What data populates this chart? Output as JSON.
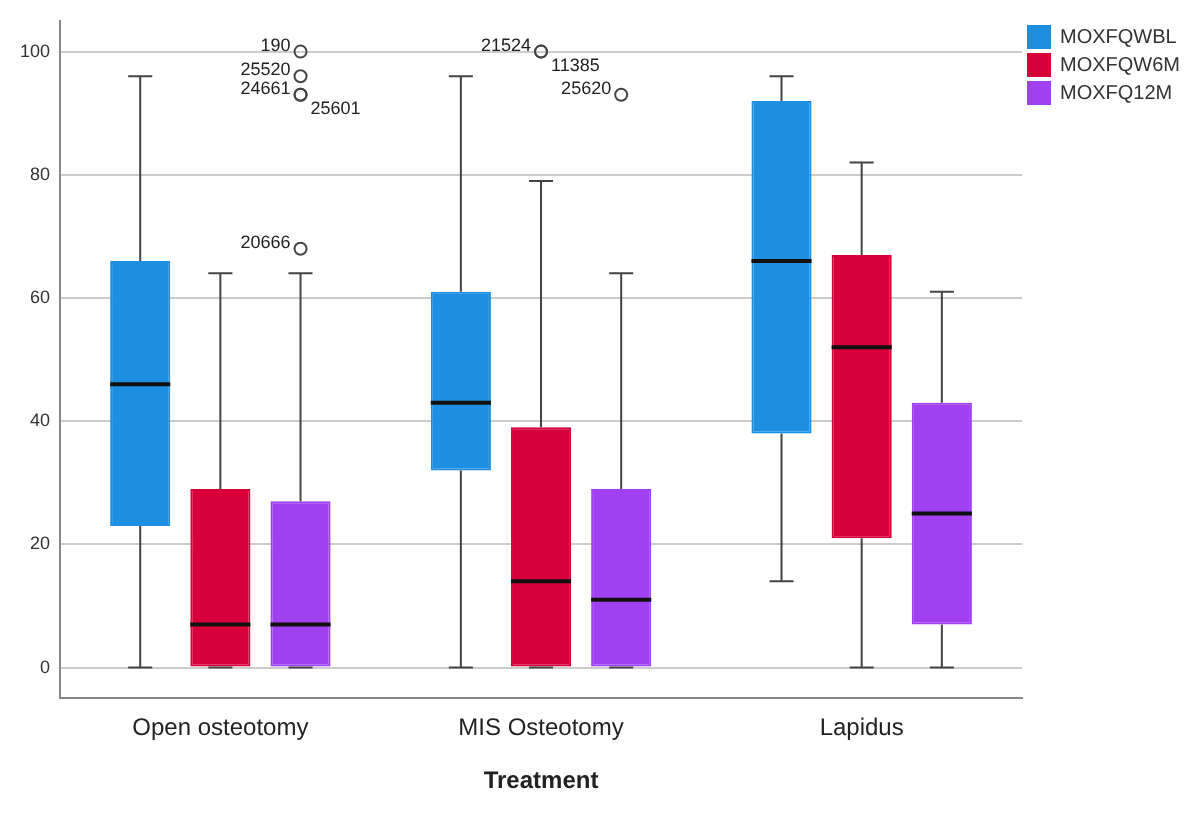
{
  "chart_data": {
    "type": "box",
    "xlabel": "Treatment",
    "categories": [
      "Open osteotomy",
      "MIS Osteotomy",
      "Lapidus"
    ],
    "series": [
      {
        "name": "MOXFQWBL",
        "color": "#1e8fe0",
        "boxes": [
          {
            "low": 0,
            "q1": 23,
            "median": 46,
            "q3": 66,
            "high": 96
          },
          {
            "low": 0,
            "q1": 32,
            "median": 43,
            "q3": 61,
            "high": 96
          },
          {
            "low": 14,
            "q1": 38,
            "median": 66,
            "q3": 92,
            "high": 96
          }
        ]
      },
      {
        "name": "MOXFQW6M",
        "color": "#d8003a",
        "boxes": [
          {
            "low": 0,
            "q1": 0,
            "median": 7,
            "q3": 29,
            "high": 64
          },
          {
            "low": 0,
            "q1": 0,
            "median": 14,
            "q3": 39,
            "high": 79,
            "outliers": [
              100,
              100
            ]
          },
          {
            "low": 0,
            "q1": 21,
            "median": 52,
            "q3": 67,
            "high": 82
          }
        ]
      },
      {
        "name": "MOXFQ12M",
        "color": "#a040f0",
        "boxes": [
          {
            "low": 0,
            "q1": 0,
            "median": 7,
            "q3": 27,
            "high": 64,
            "outliers": [
              68,
              93,
              93,
              96,
              100
            ]
          },
          {
            "low": 0,
            "q1": 0,
            "median": 11,
            "q3": 29,
            "high": 64,
            "outliers": [
              93
            ]
          },
          {
            "low": 0,
            "q1": 7,
            "median": 25,
            "q3": 43,
            "high": 61
          }
        ]
      }
    ],
    "ylim": [
      -5,
      105
    ],
    "yticks": [
      0,
      20,
      40,
      60,
      80,
      100
    ],
    "grid": "y",
    "legend": "top right",
    "annotations": [
      "21524",
      "11385",
      "20666",
      "24661",
      "25601",
      "25520",
      "190",
      "25620"
    ]
  }
}
